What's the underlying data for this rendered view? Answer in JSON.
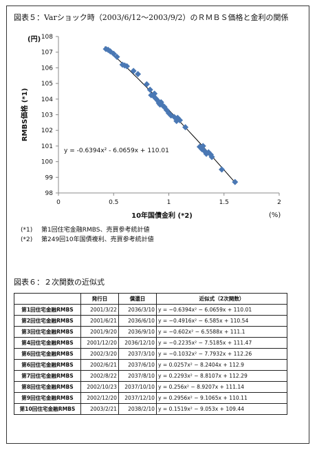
{
  "figure5": {
    "title": "図表５：Varショック時（2003/6/12～2003/9/2）のＲＭＢＳ価格と金利の関係",
    "notes": [
      {
        "mark": "(*1)",
        "text": "第1回住宅金融RMBS、売買参考統計値"
      },
      {
        "mark": "(*2)",
        "text": "第249回10年国債複利、売買参考統計値"
      }
    ]
  },
  "chart_data": {
    "type": "scatter",
    "ylabel": "RMBS価格 (*1)",
    "yunit": "(円)",
    "xlabel": "10年国債金利 (*2)",
    "xunit": "(%)",
    "xlim": [
      0,
      2
    ],
    "ylim": [
      98,
      108
    ],
    "xticks": [
      "0",
      "0.5",
      "1",
      "1.5",
      "2"
    ],
    "yticks": [
      "98",
      "99",
      "100",
      "101",
      "102",
      "103",
      "104",
      "105",
      "106",
      "107",
      "108"
    ],
    "grid": false,
    "trendline": {
      "a": -0.6394,
      "b": -6.0659,
      "c": 110.01,
      "x_range": [
        0.42,
        1.6
      ]
    },
    "equation": "y = -0.6394x² - 6.0659x + 110.01",
    "marker_color": "#4a78b4",
    "line_color": "#000000",
    "points": [
      [
        0.43,
        107.2
      ],
      [
        0.45,
        107.15
      ],
      [
        0.47,
        107.05
      ],
      [
        0.5,
        106.9
      ],
      [
        0.53,
        106.7
      ],
      [
        0.58,
        106.2
      ],
      [
        0.62,
        106.1
      ],
      [
        0.6,
        106.15
      ],
      [
        0.68,
        105.8
      ],
      [
        0.72,
        105.6
      ],
      [
        0.8,
        104.95
      ],
      [
        0.83,
        104.6
      ],
      [
        0.84,
        104.25
      ],
      [
        0.86,
        104.2
      ],
      [
        0.88,
        104.05
      ],
      [
        0.87,
        104.35
      ],
      [
        0.9,
        103.9
      ],
      [
        0.91,
        103.75
      ],
      [
        0.92,
        103.65
      ],
      [
        0.93,
        103.8
      ],
      [
        0.95,
        103.55
      ],
      [
        0.96,
        103.5
      ],
      [
        0.98,
        103.3
      ],
      [
        1.0,
        103.1
      ],
      [
        1.02,
        102.95
      ],
      [
        1.05,
        102.85
      ],
      [
        1.07,
        102.6
      ],
      [
        1.08,
        102.8
      ],
      [
        1.1,
        102.65
      ],
      [
        1.15,
        102.2
      ],
      [
        1.28,
        100.95
      ],
      [
        1.3,
        100.8
      ],
      [
        1.32,
        100.7
      ],
      [
        1.34,
        100.5
      ],
      [
        1.36,
        100.6
      ],
      [
        1.38,
        100.45
      ],
      [
        1.39,
        100.3
      ],
      [
        1.48,
        99.5
      ],
      [
        1.6,
        98.7
      ],
      [
        1.31,
        101.0
      ]
    ]
  },
  "figure6": {
    "title": "図表６：２次関数の近似式",
    "headers": [
      "",
      "発行日",
      "償還日",
      "近似式（2次関数）"
    ],
    "rows": [
      [
        "第1回住宅金融RMBS",
        "2001/3/22",
        "2036/3/10",
        "y = −0.6394x² − 6.0659x + 110.01"
      ],
      [
        "第2回住宅金融RMBS",
        "2001/6/21",
        "2036/6/10",
        "y = −0.4916x² − 6.585x + 110.54"
      ],
      [
        "第3回住宅金融RMBS",
        "2001/9/20",
        "2036/9/10",
        "y = −0.602x² − 6.5588x + 111.1"
      ],
      [
        "第4回住宅金融RMBS",
        "2001/12/20",
        "2036/12/10",
        "y = −0.2235x² − 7.5185x + 111.47"
      ],
      [
        "第6回住宅金融RMBS",
        "2002/3/20",
        "2037/3/10",
        "y = −0.1032x² − 7.7932x + 112.26"
      ],
      [
        "第6回住宅金融RMBS",
        "2002/6/21",
        "2037/6/10",
        "y = 0.0257x² − 8.2404x + 112.9"
      ],
      [
        "第7回住宅金融RMBS",
        "2002/8/22",
        "2037/8/10",
        "y = 0.2293x² − 8.8107x + 112.29"
      ],
      [
        "第8回住宅金融RMBS",
        "2002/10/23",
        "2037/10/10",
        "y = 0.256x² − 8.9207x + 111.14"
      ],
      [
        "第9回住宅金融RMBS",
        "2002/12/20",
        "2037/12/10",
        "y = 0.2956x² − 9.1065x + 110.11"
      ],
      [
        "第10回住宅金融RMBS",
        "2003/2/21",
        "2038/2/10",
        "y = 0.1519x² − 9.053x + 109.44"
      ]
    ]
  }
}
